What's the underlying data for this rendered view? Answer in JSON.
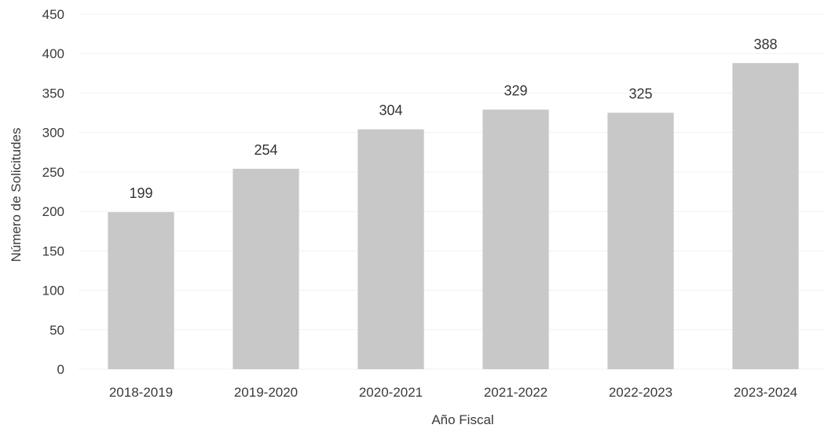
{
  "chart_data": {
    "type": "bar",
    "categories": [
      "2018-2019",
      "2019-2020",
      "2020-2021",
      "2021-2022",
      "2022-2023",
      "2023-2024"
    ],
    "values": [
      199,
      254,
      304,
      329,
      325,
      388
    ],
    "data_labels": [
      "199",
      "254",
      "304",
      "329",
      "325",
      "388"
    ],
    "title": "",
    "xlabel": "Año Fiscal",
    "ylabel": "Número de Solicitudes",
    "ylim": [
      0,
      450
    ],
    "yticks": [
      0,
      50,
      100,
      150,
      200,
      250,
      300,
      350,
      400,
      450
    ],
    "ytick_labels": [
      "0",
      "50",
      "100",
      "150",
      "200",
      "250",
      "300",
      "350",
      "400",
      "450"
    ],
    "grid": true,
    "legend": "none",
    "bar_color": "#c8c8c8"
  }
}
